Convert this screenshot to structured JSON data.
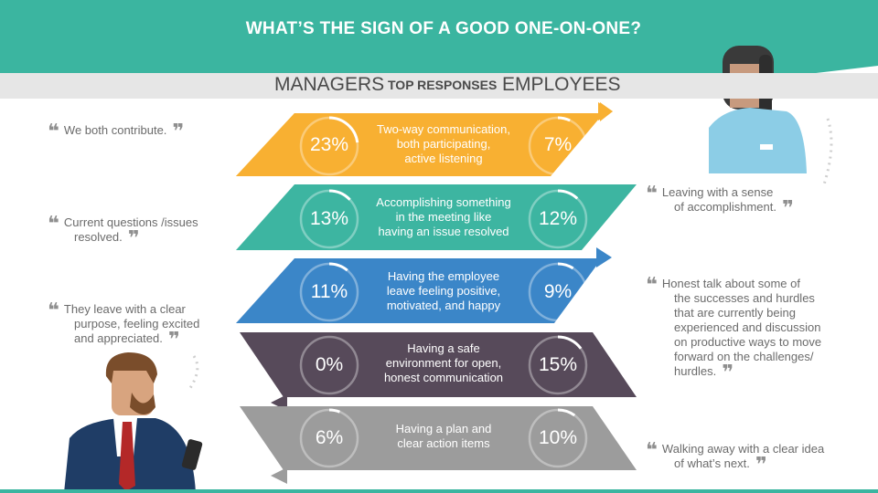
{
  "title": "WHAT’S THE SIGN OF  A GOOD ONE-ON-ONE?",
  "header_labels": {
    "managers": "MANAGERS",
    "top_responses": "TOP RESPONSES",
    "employees": "EMPLOYEES"
  },
  "colors": {
    "header": "#3bb5a0",
    "row1": "#f8b032",
    "row2": "#3db5a1",
    "row3": "#3b86c8",
    "row4": "#574a5a",
    "row5": "#9c9c9c"
  },
  "rows": [
    {
      "text": [
        "Two-way communication,",
        "both participating,",
        "active listening"
      ],
      "managers": "23%",
      "employees": "7%",
      "managers_value": 23,
      "employees_value": 7
    },
    {
      "text": [
        "Accomplishing something",
        "in the meeting like",
        "having an issue resolved"
      ],
      "managers": "13%",
      "employees": "12%",
      "managers_value": 13,
      "employees_value": 12
    },
    {
      "text": [
        "Having the employee",
        "leave feeling positive,",
        "motivated, and happy"
      ],
      "managers": "11%",
      "employees": "9%",
      "managers_value": 11,
      "employees_value": 9
    },
    {
      "text": [
        "Having a safe",
        "environment for open,",
        "honest communication"
      ],
      "managers": "0%",
      "employees": "15%",
      "managers_value": 0,
      "employees_value": 15
    },
    {
      "text": [
        "Having a plan and",
        "clear action items"
      ],
      "managers": "6%",
      "employees": "10%",
      "managers_value": 6,
      "employees_value": 10
    }
  ],
  "manager_quotes": [
    [
      "We both contribute."
    ],
    [
      "Current questions /issues",
      "resolved."
    ],
    [
      "They leave with a clear",
      "purpose, feeling excited",
      "and appreciated."
    ]
  ],
  "employee_quotes": [
    [
      "Leaving with a sense",
      "of accomplishment."
    ],
    [
      "Honest talk about some of",
      "the successes and hurdles",
      "that are currently being",
      "experienced and discussion",
      "on productive ways to move",
      "forward on the challenges/",
      "hurdles."
    ],
    [
      "Walking away with a clear idea",
      "of what’s next."
    ]
  ],
  "icons": {
    "quote": "quote-mark-icon",
    "manager": "manager-illustration",
    "employee": "employee-illustration"
  }
}
